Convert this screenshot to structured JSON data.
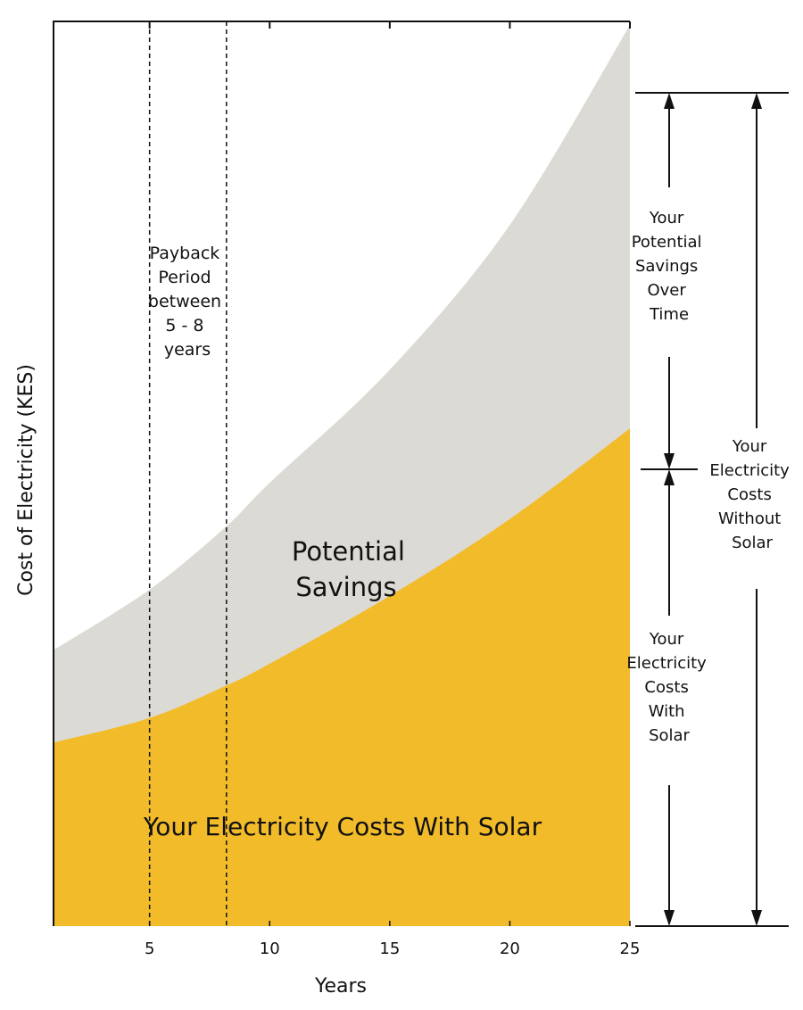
{
  "chart_data": {
    "type": "area",
    "title": "",
    "xlabel": "Years",
    "ylabel": "Cost of Electricity (KES)",
    "xlim": [
      1,
      25
    ],
    "ylim": [
      0,
      100
    ],
    "x_ticks": [
      5,
      10,
      15,
      20,
      25
    ],
    "x_tick_labels": [
      "5",
      "10",
      "15",
      "20",
      "25"
    ],
    "grid": false,
    "series": [
      {
        "name": "Your Electricity Costs With Solar",
        "color": "#F2BB2A",
        "x": [
          1,
          5,
          8.2,
          10,
          15,
          20,
          25
        ],
        "y": [
          20.3,
          23.0,
          26.6,
          29.0,
          36.5,
          45.0,
          55.0
        ]
      },
      {
        "name": "Potential Savings",
        "color": "#DCDAD4",
        "x": [
          1,
          5,
          8.2,
          10,
          15,
          20,
          25
        ],
        "y": [
          30.5,
          37.2,
          44.2,
          49.0,
          61.5,
          77.5,
          99.6
        ]
      }
    ],
    "vlines": [
      5,
      8.2
    ],
    "vline_note": [
      "Payback",
      "Period",
      "between",
      "5 - 8",
      "years"
    ],
    "annotations": {
      "area_upper": [
        "Potential",
        "Savings"
      ],
      "area_lower": "Your Electricity Costs With Solar",
      "savings_bracket": [
        "Your",
        "Potential",
        "Savings",
        "Over",
        "Time"
      ],
      "with_solar_bracket": [
        "Your",
        "Electricity",
        "Costs",
        "With",
        "Solar"
      ],
      "without_solar_bracket": [
        "Your",
        "Electricity",
        "Costs",
        "Without",
        "Solar"
      ]
    }
  }
}
